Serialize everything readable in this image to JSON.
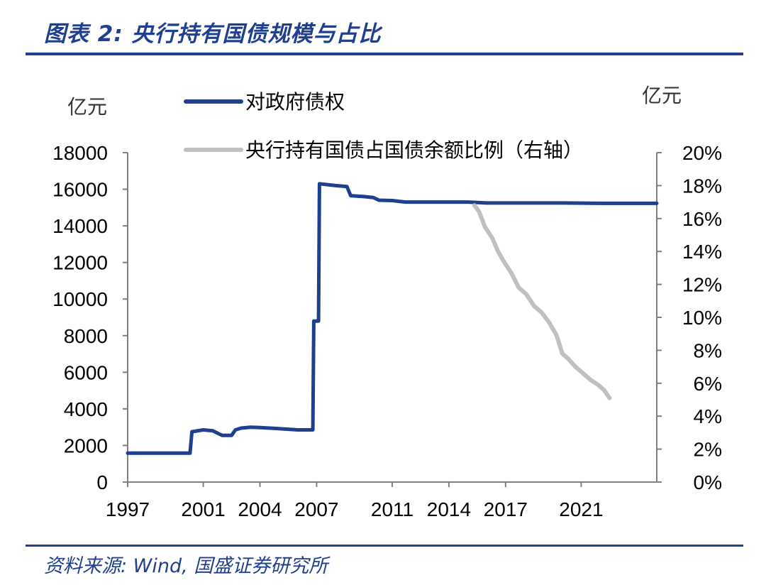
{
  "header": {
    "title": "图表 2:  央行持有国债规模与占比"
  },
  "footer": {
    "source": "资料来源:  Wind,  国盛证券研究所"
  },
  "chart_data": {
    "type": "line",
    "title": "央行持有国债规模与占比",
    "left_unit": "亿元",
    "right_unit": "亿元",
    "x_ticks": [
      "1997",
      "2001",
      "2004",
      "2007",
      "2011",
      "2014",
      "2017",
      "2021"
    ],
    "xlim": [
      1997,
      2025
    ],
    "ylim_left": [
      0,
      18000
    ],
    "y_ticks_left": [
      "0",
      "2000",
      "4000",
      "6000",
      "8000",
      "10000",
      "12000",
      "14000",
      "16000",
      "18000"
    ],
    "ylim_right": [
      0,
      20
    ],
    "y_ticks_right": [
      "0%",
      "2%",
      "4%",
      "6%",
      "8%",
      "10%",
      "12%",
      "14%",
      "16%",
      "18%",
      "20%"
    ],
    "colors": {
      "primary": "#1f3f8f",
      "secondary": "#c0c0c0"
    },
    "series": [
      {
        "name": "对政府债权",
        "axis": "left",
        "points": [
          [
            1997.0,
            1580
          ],
          [
            2000.3,
            1580
          ],
          [
            2000.4,
            2750
          ],
          [
            2001.0,
            2850
          ],
          [
            2001.5,
            2800
          ],
          [
            2002.0,
            2550
          ],
          [
            2002.5,
            2550
          ],
          [
            2002.7,
            2850
          ],
          [
            2003.0,
            2950
          ],
          [
            2003.5,
            3000
          ],
          [
            2004.0,
            2980
          ],
          [
            2005.0,
            2920
          ],
          [
            2006.0,
            2850
          ],
          [
            2006.8,
            2850
          ],
          [
            2006.85,
            8800
          ],
          [
            2007.1,
            8800
          ],
          [
            2007.15,
            16300
          ],
          [
            2008.0,
            16200
          ],
          [
            2008.6,
            16150
          ],
          [
            2008.8,
            15650
          ],
          [
            2009.5,
            15600
          ],
          [
            2010.0,
            15550
          ],
          [
            2010.3,
            15400
          ],
          [
            2011.0,
            15380
          ],
          [
            2011.7,
            15300
          ],
          [
            2013.0,
            15300
          ],
          [
            2014.0,
            15300
          ],
          [
            2015.0,
            15300
          ],
          [
            2016.0,
            15250
          ],
          [
            2018.0,
            15250
          ],
          [
            2020.0,
            15250
          ],
          [
            2022.0,
            15230
          ],
          [
            2025.0,
            15230
          ]
        ]
      },
      {
        "name": "央行持有国债占国债余额比例（右轴）",
        "axis": "right",
        "points": [
          [
            2015.35,
            16.8
          ],
          [
            2015.6,
            16.4
          ],
          [
            2015.9,
            15.5
          ],
          [
            2016.3,
            14.8
          ],
          [
            2016.6,
            14.0
          ],
          [
            2016.9,
            13.4
          ],
          [
            2017.3,
            12.7
          ],
          [
            2017.7,
            11.8
          ],
          [
            2018.1,
            11.4
          ],
          [
            2018.5,
            10.7
          ],
          [
            2018.9,
            10.3
          ],
          [
            2019.3,
            9.7
          ],
          [
            2019.7,
            8.9
          ],
          [
            2020.0,
            7.8
          ],
          [
            2020.3,
            7.5
          ],
          [
            2020.7,
            7.0
          ],
          [
            2021.1,
            6.6
          ],
          [
            2021.5,
            6.2
          ],
          [
            2021.9,
            5.9
          ],
          [
            2022.2,
            5.6
          ],
          [
            2022.5,
            5.1
          ]
        ]
      }
    ]
  }
}
